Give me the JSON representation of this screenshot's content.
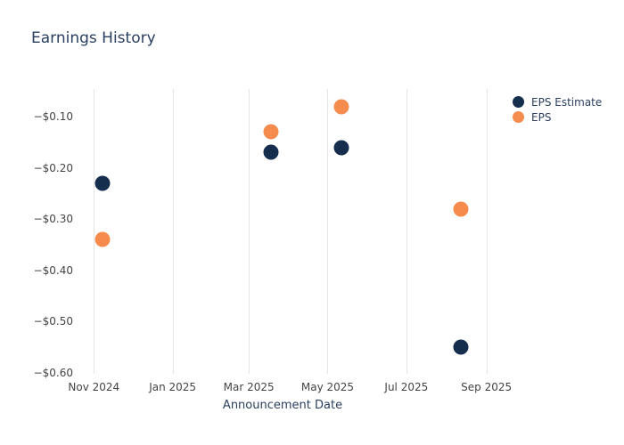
{
  "chart_data": {
    "type": "scatter",
    "title": "Earnings History",
    "xlabel": "Announcement Date",
    "legend_position": "top-right",
    "grid": "vertical-only",
    "x_range": [
      "2024-10-18",
      "2025-09-04"
    ],
    "y_range": [
      -0.602,
      -0.046
    ],
    "x_ticks": [
      {
        "date": "2024-11-01",
        "label": "Nov 2024"
      },
      {
        "date": "2025-01-01",
        "label": "Jan 2025"
      },
      {
        "date": "2025-03-01",
        "label": "Mar 2025"
      },
      {
        "date": "2025-05-01",
        "label": "May 2025"
      },
      {
        "date": "2025-07-01",
        "label": "Jul 2025"
      },
      {
        "date": "2025-09-01",
        "label": "Sep 2025"
      }
    ],
    "y_ticks": [
      {
        "value": -0.1,
        "label": "−$0.10"
      },
      {
        "value": -0.2,
        "label": "−$0.20"
      },
      {
        "value": -0.3,
        "label": "−$0.30"
      },
      {
        "value": -0.4,
        "label": "−$0.40"
      },
      {
        "value": -0.5,
        "label": "−$0.50"
      },
      {
        "value": -0.6,
        "label": "−$0.60"
      }
    ],
    "series": [
      {
        "name": "EPS Estimate",
        "color": "#152e4d",
        "points": [
          {
            "date": "2024-11-08",
            "value": -0.23
          },
          {
            "date": "2025-03-18",
            "value": -0.17
          },
          {
            "date": "2025-05-12",
            "value": -0.16
          },
          {
            "date": "2025-08-12",
            "value": -0.55
          }
        ]
      },
      {
        "name": "EPS",
        "color": "#f68b4e",
        "points": [
          {
            "date": "2024-11-08",
            "value": -0.34
          },
          {
            "date": "2025-03-18",
            "value": -0.13
          },
          {
            "date": "2025-05-12",
            "value": -0.08
          },
          {
            "date": "2025-08-12",
            "value": -0.28
          }
        ]
      }
    ]
  }
}
